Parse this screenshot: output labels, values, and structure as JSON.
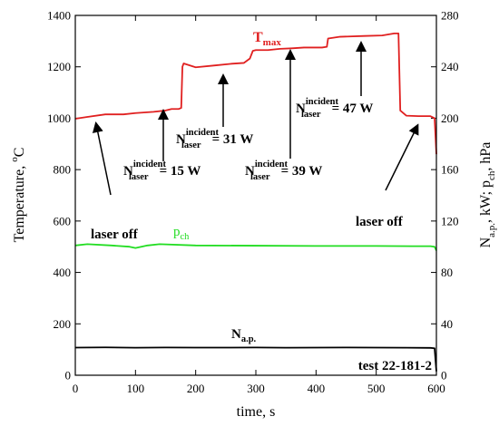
{
  "chart_data": {
    "type": "line",
    "xlabel": "time, s",
    "ylabel_left": "Temperature, oC",
    "ylabel_right": "Na.p., kW;  pch, hPa",
    "xlim": [
      0,
      600
    ],
    "ylim_left": [
      0,
      1400
    ],
    "ylim_right": [
      0,
      280
    ],
    "x_ticks": [
      "0",
      "100",
      "200",
      "300",
      "400",
      "500",
      "600"
    ],
    "y_left_ticks": [
      "0",
      "200",
      "400",
      "600",
      "800",
      "1000",
      "1200",
      "1400"
    ],
    "y_right_ticks": [
      "0",
      "40",
      "80",
      "120",
      "160",
      "200",
      "240",
      "280"
    ],
    "grid": false,
    "series": [
      {
        "name": "Tmax",
        "label_main": "T",
        "label_sub": "max",
        "color": "#e02020",
        "axis": "left",
        "x": [
          0,
          20,
          50,
          80,
          100,
          130,
          150,
          160,
          172,
          176,
          178,
          180,
          200,
          230,
          260,
          280,
          290,
          295,
          300,
          320,
          340,
          360,
          380,
          410,
          418,
          420,
          440,
          480,
          510,
          530,
          537,
          540,
          550,
          570,
          590,
          597,
          600
        ],
        "y": [
          998,
          1005,
          1015,
          1015,
          1020,
          1025,
          1030,
          1036,
          1036,
          1040,
          1200,
          1213,
          1198,
          1205,
          1212,
          1215,
          1232,
          1262,
          1265,
          1265,
          1270,
          1272,
          1275,
          1275,
          1278,
          1310,
          1317,
          1320,
          1322,
          1330,
          1330,
          1030,
          1010,
          1008,
          1008,
          1000,
          860
        ]
      },
      {
        "name": "pch",
        "label_main": "p",
        "label_sub": "ch",
        "color": "#22dd22",
        "axis": "right",
        "x": [
          0,
          20,
          60,
          90,
          100,
          120,
          140,
          200,
          300,
          400,
          500,
          560,
          590,
          597,
          600
        ],
        "y": [
          101,
          102,
          101,
          100,
          99,
          101,
          102,
          101,
          100.8,
          100.6,
          100.6,
          100.4,
          100.4,
          100,
          97
        ]
      },
      {
        "name": "Na.p.",
        "label_main": "N",
        "label_sub": "a.p.",
        "color": "#000000",
        "axis": "right",
        "x": [
          0,
          50,
          100,
          150,
          200,
          250,
          300,
          350,
          400,
          450,
          500,
          550,
          590,
          597,
          600
        ],
        "y": [
          21.5,
          21.7,
          21.4,
          21.6,
          21.5,
          21.5,
          21.6,
          21.4,
          21.5,
          21.6,
          21.5,
          21.4,
          21.3,
          21,
          3
        ]
      }
    ],
    "annotations": [
      {
        "text": "laser off",
        "style": "plain"
      },
      {
        "text": "laser off",
        "style": "plain"
      },
      {
        "main": "N",
        "sub": "laser",
        "sup": "incident",
        "value": "= 15 W"
      },
      {
        "main": "N",
        "sub": "laser",
        "sup": "incident",
        "value": "= 31 W"
      },
      {
        "main": "N",
        "sub": "laser",
        "sup": "incident",
        "value": "= 39 W"
      },
      {
        "main": "N",
        "sub": "laser",
        "sup": "incident",
        "value": "= 47 W"
      }
    ],
    "test_label": "test 22-181-2"
  }
}
